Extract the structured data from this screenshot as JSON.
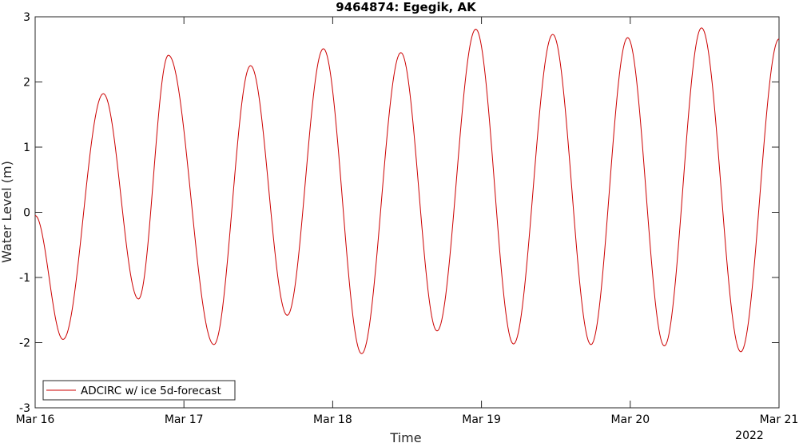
{
  "chart_data": {
    "type": "line",
    "title": "9464874: Egegik, AK",
    "xlabel": "Time",
    "ylabel": "Water Level (m)",
    "x_ticks": [
      "Mar 16",
      "Mar 17",
      "Mar 18",
      "Mar 19",
      "Mar 20",
      "Mar 21"
    ],
    "x_year_label": "2022",
    "x_range_days": [
      0,
      5
    ],
    "ylim": [
      -3,
      3
    ],
    "y_ticks": [
      "-3",
      "-2",
      "-1",
      "0",
      "1",
      "2",
      "3"
    ],
    "grid": false,
    "legend_position": "bottom-left",
    "series": [
      {
        "name": "ADCIRC w/ ice 5d-forecast",
        "color": "#cc0000",
        "extrema": [
          {
            "x": "Mar 16 00:00",
            "y": -0.05
          },
          {
            "x": "Mar 16 04:30",
            "y": -1.95
          },
          {
            "x": "Mar 16 11:00",
            "y": 1.82
          },
          {
            "x": "Mar 16 16:40",
            "y": -1.33
          },
          {
            "x": "Mar 16 21:30",
            "y": 2.41
          },
          {
            "x": "Mar 17 04:50",
            "y": -2.03
          },
          {
            "x": "Mar 17 10:45",
            "y": 2.25
          },
          {
            "x": "Mar 17 16:40",
            "y": -1.58
          },
          {
            "x": "Mar 17 22:30",
            "y": 2.51
          },
          {
            "x": "Mar 18 04:40",
            "y": -2.17
          },
          {
            "x": "Mar 18 11:00",
            "y": 2.45
          },
          {
            "x": "Mar 18 16:50",
            "y": -1.82
          },
          {
            "x": "Mar 18 23:05",
            "y": 2.81
          },
          {
            "x": "Mar 19 05:10",
            "y": -2.02
          },
          {
            "x": "Mar 19 11:30",
            "y": 2.73
          },
          {
            "x": "Mar 19 17:40",
            "y": -2.03
          },
          {
            "x": "Mar 19 23:35",
            "y": 2.68
          },
          {
            "x": "Mar 20 05:30",
            "y": -2.05
          },
          {
            "x": "Mar 20 11:30",
            "y": 2.83
          },
          {
            "x": "Mar 20 17:50",
            "y": -2.14
          },
          {
            "x": "Mar 21 00:00",
            "y": 2.66
          }
        ]
      }
    ]
  }
}
